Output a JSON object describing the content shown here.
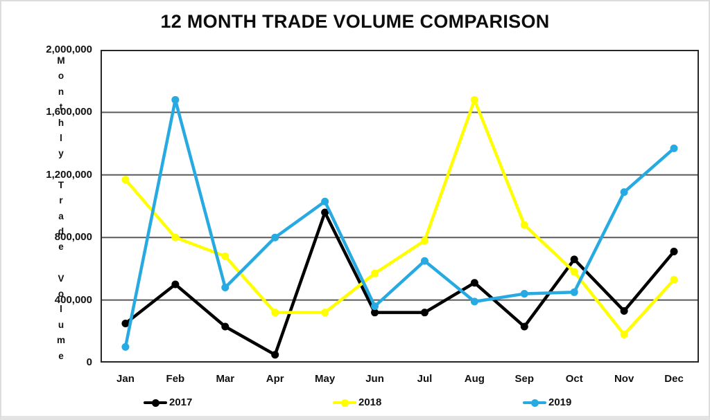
{
  "chart_data": {
    "type": "line",
    "title": "12 MONTH TRADE VOLUME COMPARISON",
    "ylabel": "Monthly Trade Volume",
    "xlabel": "",
    "categories": [
      "Jan",
      "Feb",
      "Mar",
      "Apr",
      "May",
      "Jun",
      "Jul",
      "Aug",
      "Sep",
      "Oct",
      "Nov",
      "Dec"
    ],
    "ylim": [
      0,
      2000000
    ],
    "ytick_step": 400000,
    "ytick_labels": [
      "0",
      "400,000",
      "800,000",
      "1,200,000",
      "1,600,000",
      "2,000,000"
    ],
    "grid": true,
    "legend_position": "bottom",
    "colors": {
      "grid": "#595959",
      "axis": "#262626",
      "background": "#ffffff"
    },
    "series": [
      {
        "name": "2017",
        "color": "#000000",
        "values": [
          250000,
          500000,
          230000,
          50000,
          960000,
          320000,
          320000,
          510000,
          230000,
          660000,
          330000,
          710000
        ]
      },
      {
        "name": "2018",
        "color": "#FFFF00",
        "values": [
          1170000,
          800000,
          680000,
          320000,
          320000,
          570000,
          780000,
          1680000,
          880000,
          580000,
          180000,
          530000
        ]
      },
      {
        "name": "2019",
        "color": "#27AAE1",
        "values": [
          100000,
          1680000,
          480000,
          800000,
          1030000,
          360000,
          650000,
          390000,
          440000,
          450000,
          1090000,
          1370000
        ]
      }
    ]
  }
}
